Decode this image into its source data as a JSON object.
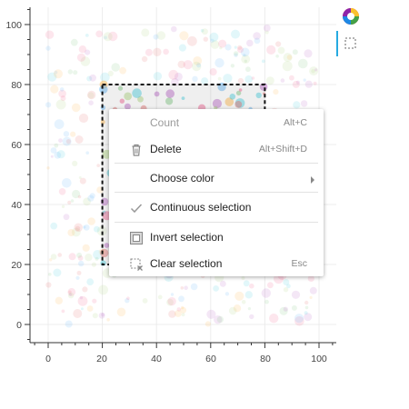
{
  "axes": {
    "y_ticks": [
      "0",
      "20",
      "40",
      "60",
      "80",
      "100"
    ],
    "x_ticks": [
      "0",
      "20",
      "40",
      "60",
      "80",
      "100"
    ]
  },
  "selection": {
    "x_range": [
      20,
      80
    ],
    "y_range": [
      20,
      80
    ]
  },
  "toolbar": {
    "logo_icon": "bokeh-logo-icon",
    "tool_icon": "box-select-icon",
    "accent_color": "#26aae1"
  },
  "context_menu": {
    "items": [
      {
        "label": "Count",
        "shortcut": "Alt+C",
        "icon": "",
        "disabled": true
      },
      {
        "label": "Delete",
        "shortcut": "Alt+Shift+D",
        "icon": "trash-icon"
      },
      {
        "label": "Choose color",
        "shortcut": "",
        "icon": "",
        "submenu": true
      },
      {
        "label": "Continuous selection",
        "shortcut": "",
        "icon": "checkmark-icon"
      },
      {
        "label": "Invert selection",
        "shortcut": "",
        "icon": "invert-selection-icon"
      },
      {
        "label": "Clear selection",
        "shortcut": "Esc",
        "icon": "clear-selection-icon"
      }
    ]
  }
}
